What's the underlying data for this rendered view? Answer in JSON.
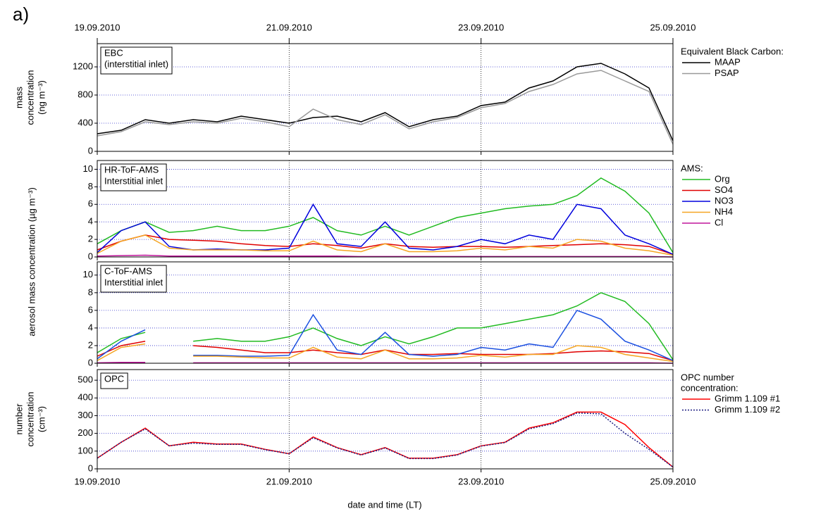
{
  "panel_label": "a)",
  "xlabel": "date and time (LT)",
  "shared_ylabel": "aerosol mass concentration (µg m⁻³)",
  "chart_data": [
    {
      "type": "line",
      "box_label": [
        "EBC",
        "(interstitial inlet)"
      ],
      "ylabel": [
        "mass",
        "concentration",
        "(ng m⁻³)"
      ],
      "legend_title": [
        "Equivalent Black Carbon:"
      ],
      "x": [
        0,
        0.25,
        0.5,
        0.75,
        1,
        1.25,
        1.5,
        1.75,
        2,
        2.25,
        2.5,
        2.75,
        3,
        3.25,
        3.5,
        3.75,
        4,
        4.25,
        4.5,
        4.75,
        5,
        5.25,
        5.5,
        5.75,
        6
      ],
      "xlim": [
        0,
        6
      ],
      "xticks": [
        {
          "value": 0,
          "label": "19.09.2010"
        },
        {
          "value": 2,
          "label": "21.09.2010"
        },
        {
          "value": 4,
          "label": "23.09.2010"
        },
        {
          "value": 6,
          "label": "25.09.2010"
        }
      ],
      "ylim": [
        0,
        1530
      ],
      "yticks": [
        0,
        400,
        800,
        1200
      ],
      "grid": true,
      "series": [
        {
          "name": "MAAP",
          "color": "#000000",
          "values": [
            250,
            300,
            450,
            400,
            450,
            420,
            500,
            450,
            400,
            480,
            500,
            420,
            550,
            350,
            450,
            500,
            650,
            700,
            900,
            1000,
            1200,
            1250,
            1100,
            900,
            150
          ]
        },
        {
          "name": "PSAP",
          "color": "#999999",
          "values": [
            220,
            280,
            420,
            380,
            420,
            400,
            470,
            420,
            350,
            600,
            450,
            380,
            520,
            320,
            420,
            480,
            620,
            680,
            850,
            950,
            1100,
            1150,
            1000,
            850,
            100
          ]
        }
      ]
    },
    {
      "type": "line",
      "box_label": [
        "HR-ToF-AMS",
        "Interstitial inlet"
      ],
      "legend_title": [
        "AMS:"
      ],
      "x": [
        0,
        0.25,
        0.5,
        0.75,
        1,
        1.25,
        1.5,
        1.75,
        2,
        2.25,
        2.5,
        2.75,
        3,
        3.25,
        3.5,
        3.75,
        4,
        4.25,
        4.5,
        4.75,
        5,
        5.25,
        5.5,
        5.75,
        6
      ],
      "xlim": [
        0,
        6
      ],
      "xticks": [
        {
          "value": 0,
          "label": "19.09.2010"
        },
        {
          "value": 2,
          "label": "21.09.2010"
        },
        {
          "value": 4,
          "label": "23.09.2010"
        },
        {
          "value": 6,
          "label": "25.09.2010"
        }
      ],
      "ylim": [
        0,
        11
      ],
      "yticks": [
        0,
        2,
        4,
        6,
        8,
        10
      ],
      "grid": true,
      "series": [
        {
          "name": "Org",
          "color": "#22bb22",
          "values": [
            1.5,
            3,
            4,
            2.8,
            3,
            3.5,
            3,
            3,
            3.5,
            4.5,
            3,
            2.5,
            3.5,
            2.5,
            3.5,
            4.5,
            5,
            5.5,
            5.8,
            6,
            7,
            9,
            7.5,
            5,
            0.5
          ]
        },
        {
          "name": "SO4",
          "color": "#e00000",
          "values": [
            0.8,
            1.8,
            2.5,
            2,
            1.9,
            1.8,
            1.5,
            1.3,
            1.2,
            1.5,
            1.3,
            1,
            1.5,
            1.2,
            1.1,
            1.2,
            1.2,
            1.1,
            1.2,
            1.3,
            1.4,
            1.5,
            1.4,
            1.2,
            0.3
          ]
        },
        {
          "name": "NO3",
          "color": "#0000dd",
          "values": [
            0.5,
            3,
            4,
            1.2,
            0.8,
            0.9,
            0.8,
            0.8,
            1,
            6,
            1.5,
            1.2,
            4,
            1,
            0.8,
            1.2,
            2,
            1.5,
            2.5,
            2,
            6,
            5.5,
            2.5,
            1.5,
            0.3
          ]
        },
        {
          "name": "NH4",
          "color": "#f5a623",
          "values": [
            0.4,
            1.8,
            2.5,
            1,
            0.8,
            0.8,
            0.8,
            0.7,
            0.7,
            1.8,
            0.8,
            0.6,
            1.5,
            0.6,
            0.6,
            0.7,
            1,
            0.8,
            1.2,
            1,
            2,
            1.8,
            1,
            0.7,
            0.2
          ]
        },
        {
          "name": "Cl",
          "color": "#c0169c",
          "values": [
            0.1,
            0.15,
            0.2,
            0.1,
            0.1,
            0.1,
            0.1,
            0.1,
            0.1,
            0.1,
            0.1,
            0.05,
            0.05,
            0.05,
            0.05,
            0.05,
            0.05,
            0.05,
            0.05,
            0.05,
            0.05,
            0.05,
            0.05,
            0.05,
            0
          ]
        }
      ]
    },
    {
      "type": "line",
      "box_label": [
        "C-ToF-AMS",
        "Interstitial inlet"
      ],
      "x": [
        0,
        0.25,
        0.5,
        0.75,
        1,
        1.25,
        1.5,
        1.75,
        2,
        2.25,
        2.5,
        2.75,
        3,
        3.25,
        3.5,
        3.75,
        4,
        4.25,
        4.5,
        4.75,
        5,
        5.25,
        5.5,
        5.75,
        6
      ],
      "xlim": [
        0,
        6
      ],
      "xticks": [
        {
          "value": 0,
          "label": "19.09.2010"
        },
        {
          "value": 2,
          "label": "21.09.2010"
        },
        {
          "value": 4,
          "label": "23.09.2010"
        },
        {
          "value": 6,
          "label": "25.09.2010"
        }
      ],
      "ylim": [
        0,
        11.5
      ],
      "yticks": [
        0,
        2,
        4,
        6,
        8,
        10
      ],
      "grid": true,
      "series": [
        {
          "name": "Org",
          "color": "#22bb22",
          "values": [
            1.2,
            2.8,
            3.5,
            null,
            2.5,
            2.8,
            2.5,
            2.5,
            3,
            4,
            2.8,
            2,
            3,
            2.2,
            3,
            4,
            4,
            4.5,
            5,
            5.5,
            6.5,
            8,
            7,
            4.5,
            0.4
          ]
        },
        {
          "name": "SO4",
          "color": "#e00000",
          "values": [
            0.8,
            2,
            2.5,
            null,
            2,
            1.8,
            1.5,
            1.2,
            1.2,
            1.5,
            1.2,
            1,
            1.5,
            1,
            1,
            1.1,
            1,
            1,
            1,
            1.1,
            1.3,
            1.4,
            1.3,
            1.1,
            0.3
          ]
        },
        {
          "name": "NO3",
          "color": "#1a4fe0",
          "values": [
            0.5,
            2.5,
            3.8,
            null,
            0.9,
            0.9,
            0.8,
            0.8,
            0.9,
            5.5,
            1.5,
            1,
            3.5,
            1,
            0.8,
            1,
            1.8,
            1.5,
            2.2,
            1.8,
            6,
            5,
            2.5,
            1.5,
            0.3
          ]
        },
        {
          "name": "NH4",
          "color": "#f5a623",
          "values": [
            0.3,
            1.8,
            2.2,
            null,
            0.8,
            0.8,
            0.7,
            0.6,
            0.6,
            1.8,
            0.7,
            0.5,
            1.5,
            0.5,
            0.5,
            0.6,
            0.9,
            0.7,
            1,
            1,
            2,
            1.8,
            1,
            0.6,
            0.2
          ]
        },
        {
          "name": "Cl",
          "color": "#c0169c",
          "values": [
            0.05,
            0.1,
            0.1,
            null,
            0.05,
            0.05,
            0.05,
            0.05,
            0.05,
            0.05,
            0.05,
            0.05,
            0.05,
            0.05,
            0.05,
            0.05,
            0.05,
            0.05,
            0.05,
            0.05,
            0.05,
            0.05,
            0.05,
            0.05,
            0
          ]
        }
      ]
    },
    {
      "type": "line",
      "box_label": [
        "OPC"
      ],
      "ylabel": [
        "number",
        "concentration",
        "(cm⁻³)"
      ],
      "legend_title": [
        "OPC number",
        "concentration:"
      ],
      "x": [
        0,
        0.25,
        0.5,
        0.75,
        1,
        1.25,
        1.5,
        1.75,
        2,
        2.25,
        2.5,
        2.75,
        3,
        3.25,
        3.5,
        3.75,
        4,
        4.25,
        4.5,
        4.75,
        5,
        5.25,
        5.5,
        5.75,
        6
      ],
      "xlim": [
        0,
        6
      ],
      "xticks": [
        {
          "value": 0,
          "label": "19.09.2010"
        },
        {
          "value": 2,
          "label": "21.09.2010"
        },
        {
          "value": 4,
          "label": "23.09.2010"
        },
        {
          "value": 6,
          "label": "25.09.2010"
        }
      ],
      "ylim": [
        0,
        560
      ],
      "yticks": [
        0,
        100,
        200,
        300,
        400,
        500
      ],
      "grid": true,
      "series": [
        {
          "name": "Grimm 1.109 #1",
          "color": "#ff0000",
          "dash": "solid",
          "values": [
            60,
            150,
            230,
            130,
            150,
            140,
            140,
            110,
            85,
            180,
            120,
            80,
            120,
            60,
            60,
            80,
            130,
            150,
            230,
            260,
            320,
            320,
            250,
            120,
            10
          ]
        },
        {
          "name": "Grimm 1.109 #2",
          "color": "#1a1a80",
          "dash": "dotted",
          "values": [
            60,
            150,
            225,
            130,
            145,
            138,
            138,
            108,
            85,
            175,
            118,
            78,
            118,
            58,
            58,
            78,
            128,
            148,
            225,
            255,
            315,
            310,
            200,
            110,
            10
          ]
        }
      ]
    }
  ]
}
